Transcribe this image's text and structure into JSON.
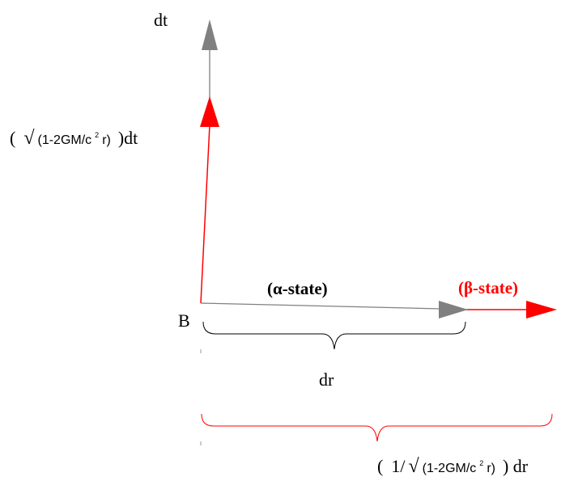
{
  "labels": {
    "dt": "dt",
    "origin": "B",
    "alpha_state": "(α-state)",
    "beta_state": "(β-state)",
    "dr": "dr",
    "time_factor": {
      "open": "(",
      "sqrt": "√",
      "expr_main": "(1-2GM/c",
      "expr_sup": "2",
      "expr_tail": "r)",
      "close": ")dt"
    },
    "radial_factor": {
      "open": "(",
      "num": "1/",
      "sqrt": "√",
      "expr_main": "(1-2GM/c",
      "expr_sup": "2",
      "expr_tail": "r)",
      "close": ") dr"
    }
  },
  "colors": {
    "gray": "#808080",
    "red": "#ff0000",
    "text": "#000000"
  }
}
